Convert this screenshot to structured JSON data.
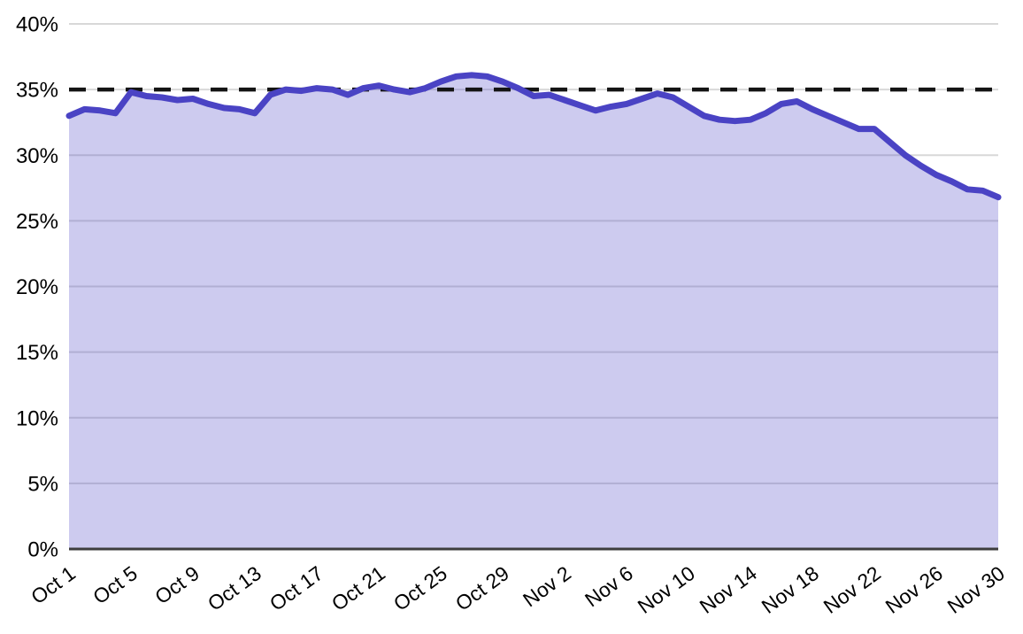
{
  "chart_data": {
    "type": "area",
    "title": "",
    "xlabel": "",
    "ylabel": "",
    "ylim": [
      0,
      40
    ],
    "y_tick_step": 5,
    "y_tick_suffix": "%",
    "grid": "horizontal gridlines on, vertical off",
    "legend_position": "none",
    "reference_line": {
      "value": 35,
      "style": "dashed",
      "color": "#141414"
    },
    "x_tick_labels": [
      "Oct 1",
      "Oct 5",
      "Oct 9",
      "Oct 13",
      "Oct 17",
      "Oct 21",
      "Oct 25",
      "Oct 29",
      "Nov 2",
      "Nov 6",
      "Nov 10",
      "Nov 14",
      "Nov 18",
      "Nov 22",
      "Nov 26",
      "Nov 30"
    ],
    "x_tick_every": 4,
    "dates": [
      "Oct 1",
      "Oct 2",
      "Oct 3",
      "Oct 4",
      "Oct 5",
      "Oct 6",
      "Oct 7",
      "Oct 8",
      "Oct 9",
      "Oct 10",
      "Oct 11",
      "Oct 12",
      "Oct 13",
      "Oct 14",
      "Oct 15",
      "Oct 16",
      "Oct 17",
      "Oct 18",
      "Oct 19",
      "Oct 20",
      "Oct 21",
      "Oct 22",
      "Oct 23",
      "Oct 24",
      "Oct 25",
      "Oct 26",
      "Oct 27",
      "Oct 28",
      "Oct 29",
      "Oct 30",
      "Oct 31",
      "Nov 1",
      "Nov 2",
      "Nov 3",
      "Nov 4",
      "Nov 5",
      "Nov 6",
      "Nov 7",
      "Nov 8",
      "Nov 9",
      "Nov 10",
      "Nov 11",
      "Nov 12",
      "Nov 13",
      "Nov 14",
      "Nov 15",
      "Nov 16",
      "Nov 17",
      "Nov 18",
      "Nov 19",
      "Nov 20",
      "Nov 21",
      "Nov 22",
      "Nov 23",
      "Nov 24",
      "Nov 25",
      "Nov 26",
      "Nov 27",
      "Nov 28",
      "Nov 29",
      "Nov 30"
    ],
    "values": [
      33.0,
      33.5,
      33.4,
      33.2,
      34.8,
      34.5,
      34.4,
      34.2,
      34.3,
      33.9,
      33.6,
      33.5,
      33.2,
      34.6,
      35.0,
      34.9,
      35.1,
      35.0,
      34.6,
      35.1,
      35.3,
      35.0,
      34.8,
      35.1,
      35.6,
      36.0,
      36.1,
      36.0,
      35.6,
      35.1,
      34.5,
      34.6,
      34.2,
      33.8,
      33.4,
      33.7,
      33.9,
      34.3,
      34.7,
      34.4,
      33.7,
      33.0,
      32.7,
      32.6,
      32.7,
      33.2,
      33.9,
      34.1,
      33.5,
      33.0,
      32.5,
      32.0,
      32.0,
      31.0,
      30.0,
      29.2,
      28.5,
      28.0,
      27.4,
      27.3,
      26.8
    ],
    "colors": {
      "line": "#4a43c4",
      "fill": "rgba(74,67,196,0.28)",
      "gridline": "#d8d8d8",
      "axis": "#3d3d3d",
      "tick_text": "#000000",
      "reference_dash": "#141414"
    }
  }
}
